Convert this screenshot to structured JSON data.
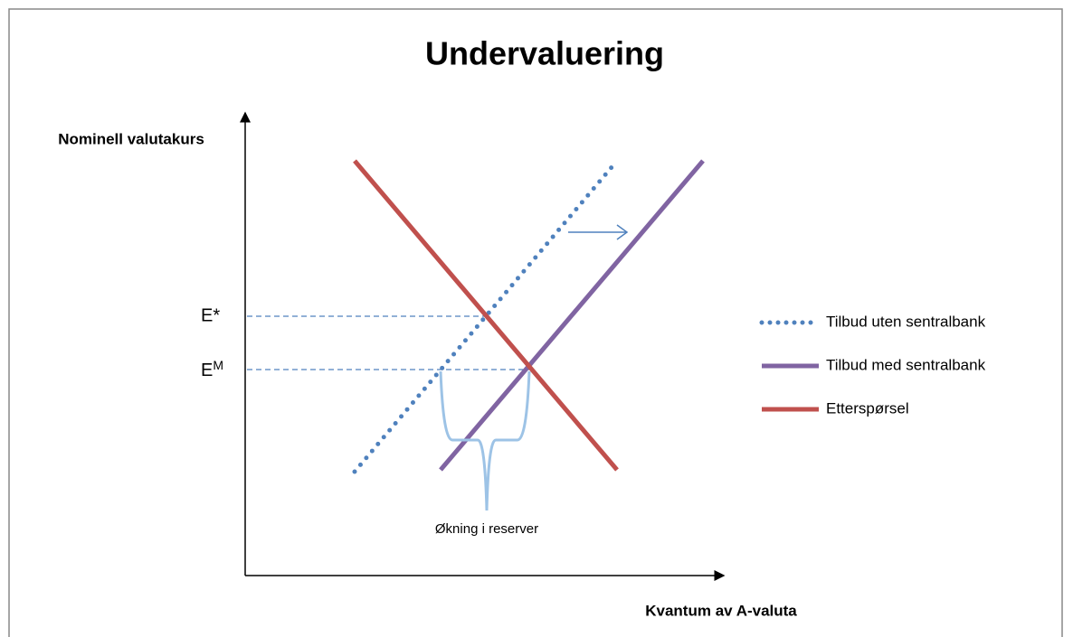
{
  "title": "Undervaluering",
  "y_axis_label": "Nominell valutakurs",
  "x_axis_label": "Kvantum av A-valuta",
  "levels": [
    {
      "base": "E*"
    },
    {
      "base": "E",
      "sup": "M"
    }
  ],
  "annotation": "Økning i reserver",
  "legend": [
    {
      "name": "Tilbud uten sentralbank",
      "color": "#4f81bd",
      "style": "dotted"
    },
    {
      "name": "Tilbud med sentralbank",
      "color": "#8064a2",
      "style": "solid"
    },
    {
      "name": "Etterspørsel",
      "color": "#c0504d",
      "style": "solid"
    }
  ]
}
